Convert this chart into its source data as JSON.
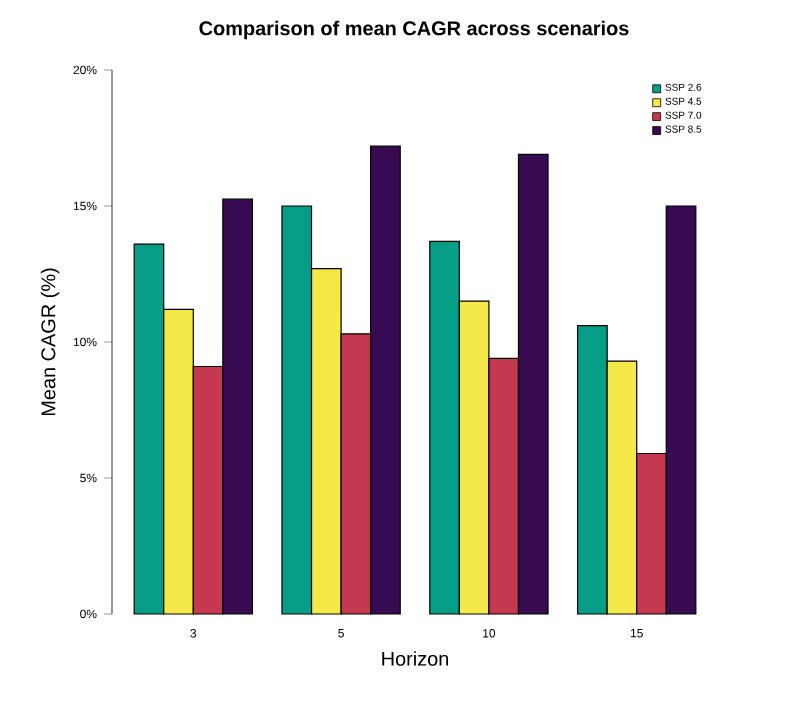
{
  "chart_data": {
    "type": "bar",
    "title": "Comparison of mean CAGR across scenarios",
    "xlabel": "Horizon",
    "ylabel": "Mean CAGR (%)",
    "categories": [
      "3",
      "5",
      "10",
      "15"
    ],
    "series": [
      {
        "name": "SSP 2.6",
        "color": "#069e86",
        "values": [
          13.6,
          15.0,
          13.7,
          10.6
        ]
      },
      {
        "name": "SSP 4.5",
        "color": "#f5e94a",
        "values": [
          11.2,
          12.7,
          11.5,
          9.3
        ]
      },
      {
        "name": "SSP 7.0",
        "color": "#c4394f",
        "values": [
          9.1,
          10.3,
          9.4,
          5.9
        ]
      },
      {
        "name": "SSP 8.5",
        "color": "#380a52",
        "values": [
          15.25,
          17.2,
          16.9,
          15.0
        ]
      }
    ],
    "ylim": [
      0,
      20
    ],
    "yticks": [
      {
        "value": 0,
        "label": "0%"
      },
      {
        "value": 5,
        "label": "5%"
      },
      {
        "value": 10,
        "label": "10%"
      },
      {
        "value": 15,
        "label": "15%"
      },
      {
        "value": 20,
        "label": "20%"
      }
    ],
    "legend": "top right"
  }
}
